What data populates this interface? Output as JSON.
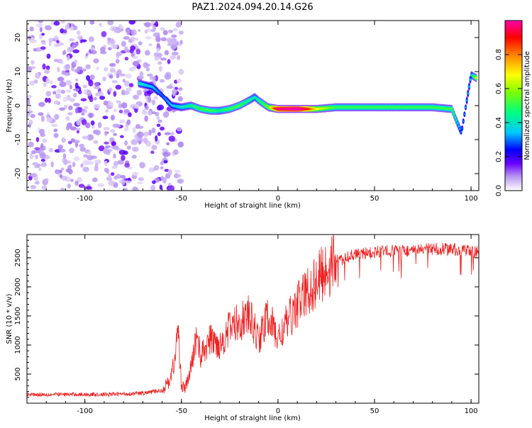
{
  "figure_title": "PAZ1.2024.094.20.14.G26",
  "chart_data": [
    {
      "type": "heatmap",
      "title": "",
      "xlabel": "Height of straight line (km)",
      "ylabel": "Frequency (Hz)",
      "xlim": [
        -130,
        104
      ],
      "ylim": [
        -25,
        25
      ],
      "xticks": [
        -100,
        -50,
        0,
        50,
        100
      ],
      "yticks": [
        -20,
        -10,
        0,
        10,
        20
      ],
      "colorbar": {
        "label": "Normalized spectral amplitude",
        "range": [
          0.0,
          1.0
        ],
        "ticks": [
          0.0,
          0.2,
          0.4,
          0.6,
          0.8
        ],
        "colormap": [
          "#ffffff",
          "#b99af0",
          "#6a00ff",
          "#0000ff",
          "#00c8ff",
          "#00ff80",
          "#80ff00",
          "#ffff00",
          "#ff8000",
          "#ff0000",
          "#ff00aa"
        ]
      },
      "ridge": {
        "height_km": [
          -72,
          -65,
          -60,
          -55,
          -50,
          -45,
          -40,
          -35,
          -30,
          -25,
          -20,
          -15,
          -12,
          -10,
          -5,
          0,
          10,
          20,
          30,
          40,
          50,
          60,
          70,
          80,
          90,
          95,
          100,
          103
        ],
        "frequency_hz": [
          6.5,
          5.5,
          3.0,
          0.0,
          -0.5,
          0.0,
          -1.0,
          -1.5,
          -1.5,
          -1.0,
          0.0,
          1.5,
          2.5,
          1.5,
          -0.5,
          -1.0,
          -1.0,
          -1.0,
          -0.5,
          -0.5,
          -0.5,
          -0.5,
          -0.5,
          -0.5,
          -1.0,
          -8.0,
          9.0,
          8.0
        ],
        "amplitude": [
          0.35,
          0.3,
          0.25,
          0.3,
          0.35,
          0.4,
          0.45,
          0.45,
          0.4,
          0.45,
          0.45,
          0.4,
          0.35,
          0.4,
          0.5,
          0.9,
          1.0,
          0.6,
          0.45,
          0.45,
          0.45,
          0.45,
          0.45,
          0.45,
          0.45,
          0.25,
          0.3,
          0.6
        ]
      },
      "noise_region_km": [
        -130,
        -50
      ]
    },
    {
      "type": "line",
      "title": "",
      "xlabel": "Height of straight line (km)",
      "ylabel": "SNR (10 * v/v)",
      "xlim": [
        -130,
        104
      ],
      "ylim": [
        0,
        2900
      ],
      "xticks": [
        -100,
        -50,
        0,
        50,
        100
      ],
      "yticks": [
        500,
        1000,
        1500,
        2000,
        2500
      ],
      "series": [
        {
          "color": "#ee2222",
          "x": [
            -130,
            -110,
            -90,
            -70,
            -60,
            -56,
            -53,
            -52,
            -51,
            -50,
            -48,
            -45,
            -42,
            -40,
            -35,
            -30,
            -25,
            -20,
            -15,
            -10,
            -5,
            0,
            5,
            10,
            15,
            20,
            25,
            30,
            40,
            50,
            60,
            70,
            80,
            90,
            100,
            104
          ],
          "y": [
            150,
            150,
            150,
            170,
            220,
            400,
            800,
            1350,
            900,
            300,
            250,
            600,
            1200,
            800,
            1100,
            1000,
            1300,
            1400,
            1500,
            1100,
            1500,
            1100,
            1400,
            1700,
            1900,
            2100,
            2300,
            2450,
            2550,
            2600,
            2620,
            2620,
            2650,
            2650,
            2600,
            2600
          ]
        }
      ]
    }
  ]
}
